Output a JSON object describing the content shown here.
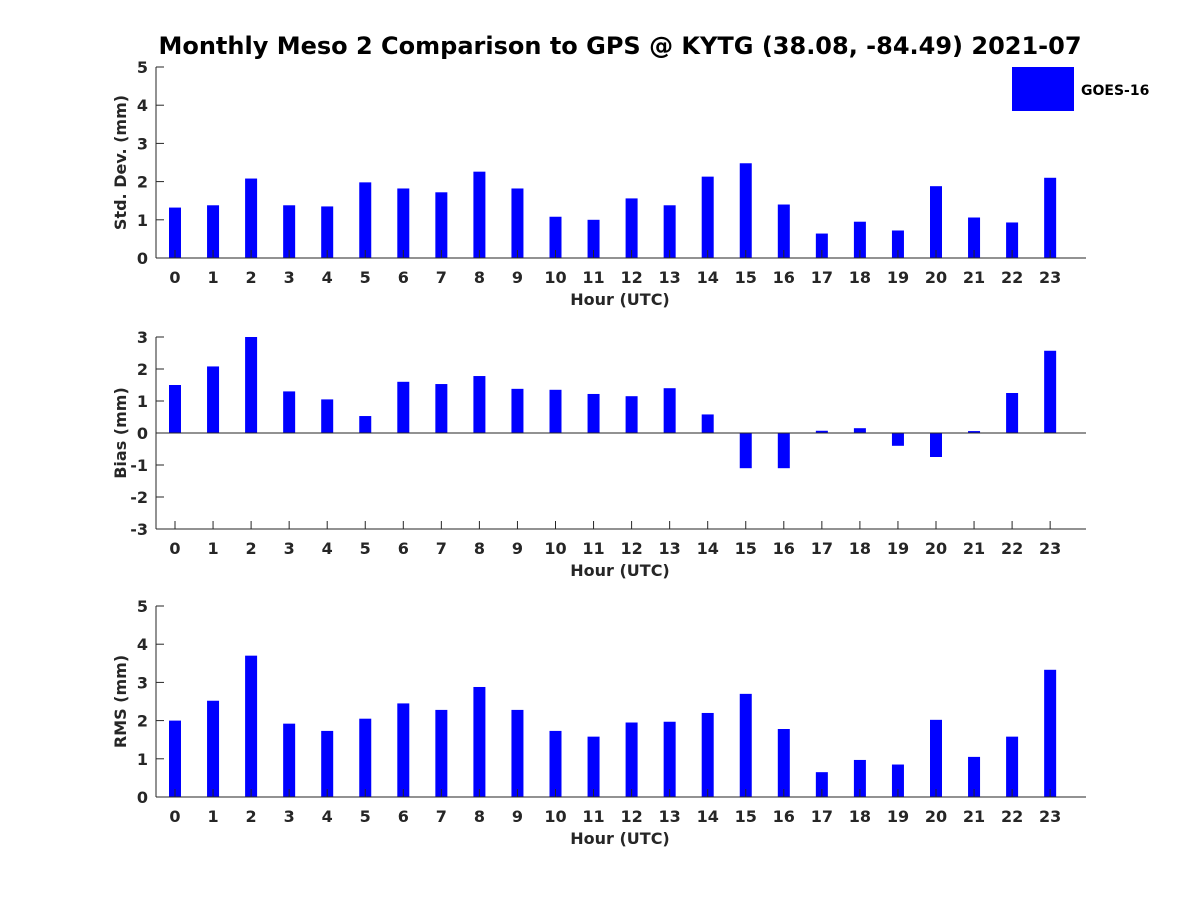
{
  "figure_title": "Monthly Meso 2 Comparison to GPS @ KYTG (38.08, -84.49) 2021-07",
  "legend": {
    "label": "GOES-16",
    "color": "#0000ff"
  },
  "chart_data": [
    {
      "type": "bar",
      "name": "std-dev",
      "ylabel": "Std. Dev. (mm)",
      "xlabel": "Hour (UTC)",
      "ylim": [
        0,
        5
      ],
      "yticks": [
        "0",
        "1",
        "2",
        "3",
        "4",
        "5"
      ],
      "categories": [
        "0",
        "1",
        "2",
        "3",
        "4",
        "5",
        "6",
        "7",
        "8",
        "9",
        "10",
        "11",
        "12",
        "13",
        "14",
        "15",
        "16",
        "17",
        "18",
        "19",
        "20",
        "21",
        "22",
        "23"
      ],
      "series": [
        {
          "name": "GOES-16",
          "values": [
            1.32,
            1.38,
            2.08,
            1.38,
            1.35,
            1.98,
            1.82,
            1.72,
            2.26,
            1.82,
            1.08,
            1.0,
            1.56,
            1.38,
            2.13,
            2.48,
            1.4,
            0.64,
            0.95,
            0.72,
            1.88,
            1.06,
            0.93,
            2.1
          ]
        }
      ]
    },
    {
      "type": "bar",
      "name": "bias",
      "ylabel": "Bias (mm)",
      "xlabel": "Hour (UTC)",
      "ylim": [
        -3,
        3
      ],
      "yticks": [
        "-3",
        "-2",
        "-1",
        "0",
        "1",
        "2",
        "3"
      ],
      "categories": [
        "0",
        "1",
        "2",
        "3",
        "4",
        "5",
        "6",
        "7",
        "8",
        "9",
        "10",
        "11",
        "12",
        "13",
        "14",
        "15",
        "16",
        "17",
        "18",
        "19",
        "20",
        "21",
        "22",
        "23"
      ],
      "series": [
        {
          "name": "GOES-16",
          "values": [
            1.5,
            2.08,
            3.0,
            1.3,
            1.05,
            0.53,
            1.6,
            1.53,
            1.78,
            1.38,
            1.35,
            1.22,
            1.15,
            1.4,
            0.58,
            -1.1,
            -1.1,
            0.07,
            0.15,
            -0.4,
            -0.75,
            0.06,
            1.25,
            2.57
          ]
        }
      ]
    },
    {
      "type": "bar",
      "name": "rms",
      "ylabel": "RMS (mm)",
      "xlabel": "Hour (UTC)",
      "ylim": [
        0,
        5
      ],
      "yticks": [
        "0",
        "1",
        "2",
        "3",
        "4",
        "5"
      ],
      "categories": [
        "0",
        "1",
        "2",
        "3",
        "4",
        "5",
        "6",
        "7",
        "8",
        "9",
        "10",
        "11",
        "12",
        "13",
        "14",
        "15",
        "16",
        "17",
        "18",
        "19",
        "20",
        "21",
        "22",
        "23"
      ],
      "series": [
        {
          "name": "GOES-16",
          "values": [
            2.0,
            2.52,
            3.7,
            1.92,
            1.73,
            2.05,
            2.45,
            2.28,
            2.88,
            2.28,
            1.73,
            1.58,
            1.95,
            1.97,
            2.2,
            2.7,
            1.78,
            0.65,
            0.97,
            0.85,
            2.02,
            1.05,
            1.58,
            3.33
          ]
        }
      ]
    }
  ]
}
